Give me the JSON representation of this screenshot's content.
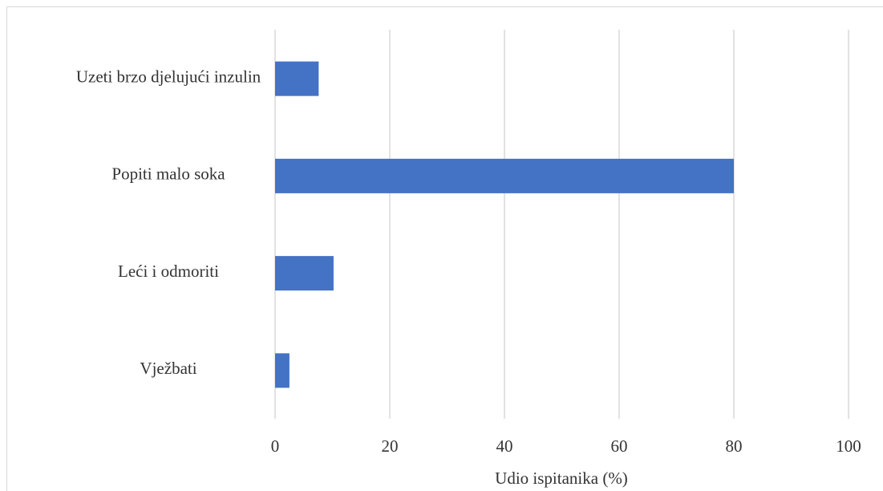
{
  "chart_data": {
    "type": "bar",
    "orientation": "horizontal",
    "categories": [
      "Uzeti brzo djelujući inzulin",
      "Popiti malo soka",
      "Leći i odmoriti",
      "Vježbati"
    ],
    "values": [
      7.6,
      80,
      10.2,
      2.5
    ],
    "color": "#4472c4",
    "xlabel": "Udio ispitanika (%)",
    "xlim": [
      0,
      100
    ],
    "xticks": [
      0,
      20,
      40,
      60,
      80,
      100
    ],
    "grid": true
  }
}
